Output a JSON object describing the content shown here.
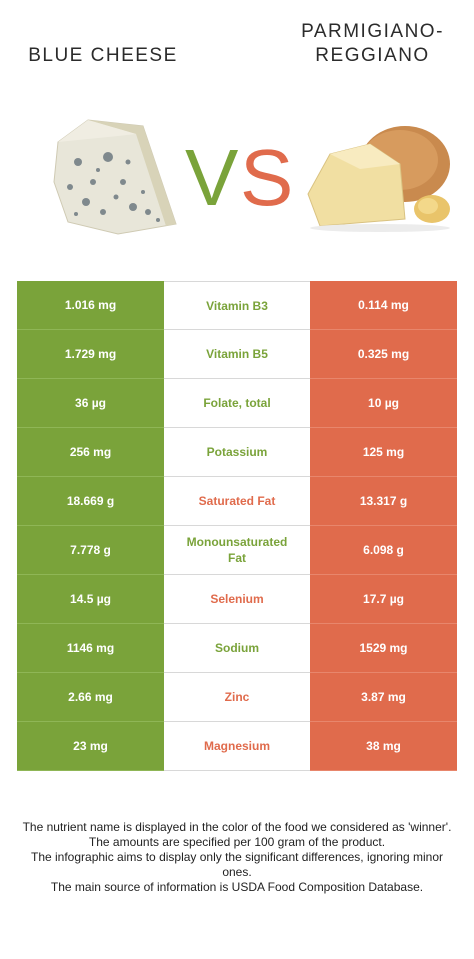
{
  "header": {
    "left_title": "BLUE CHEESE",
    "right_title_line1": "PARMIGIANO-",
    "right_title_line2": "REGGIANO",
    "vs_v": "V",
    "vs_s": "S"
  },
  "colors": {
    "left_food": "#7aa33a",
    "right_food": "#e06b4c"
  },
  "rows": [
    {
      "left": "1.016 mg",
      "nutrient": "Vitamin B3",
      "right": "0.114 mg",
      "winner": "left"
    },
    {
      "left": "1.729 mg",
      "nutrient": "Vitamin B5",
      "right": "0.325 mg",
      "winner": "left"
    },
    {
      "left": "36 µg",
      "nutrient": "Folate, total",
      "right": "10 µg",
      "winner": "left"
    },
    {
      "left": "256 mg",
      "nutrient": "Potassium",
      "right": "125 mg",
      "winner": "left"
    },
    {
      "left": "18.669 g",
      "nutrient": "Saturated Fat",
      "right": "13.317 g",
      "winner": "right"
    },
    {
      "left": "7.778 g",
      "nutrient": "Monounsaturated Fat",
      "right": "6.098 g",
      "winner": "left"
    },
    {
      "left": "14.5 µg",
      "nutrient": "Selenium",
      "right": "17.7 µg",
      "winner": "right"
    },
    {
      "left": "1146 mg",
      "nutrient": "Sodium",
      "right": "1529 mg",
      "winner": "left"
    },
    {
      "left": "2.66 mg",
      "nutrient": "Zinc",
      "right": "3.87 mg",
      "winner": "right"
    },
    {
      "left": "23 mg",
      "nutrient": "Magnesium",
      "right": "38 mg",
      "winner": "right"
    }
  ],
  "footnote": {
    "line1": "The nutrient name is displayed in the color of the food we considered as 'winner'.",
    "line2": "The amounts are specified per 100 gram of the product.",
    "line3": "The infographic aims to display only the significant differences, ignoring minor ones.",
    "line4": "The main source of information is USDA Food Composition Database."
  }
}
